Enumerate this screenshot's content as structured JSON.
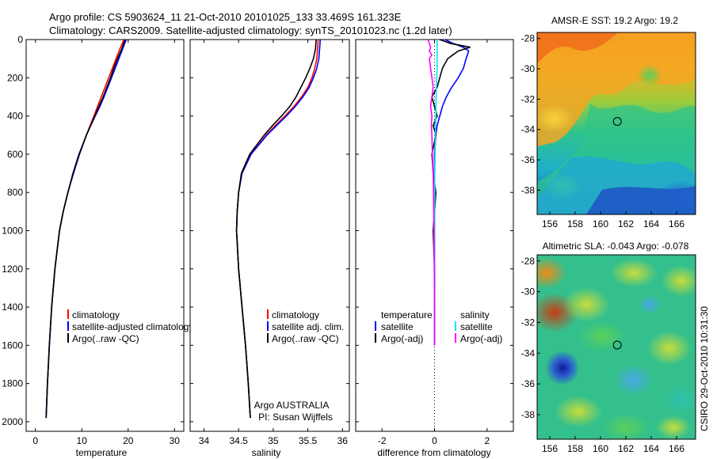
{
  "header": {
    "line1": "Argo profile: CS 5903624_11 21-Oct-2010 20101025_133 33.469S 161.323E",
    "line2": "Climatology: CARS2009. Satellite-adjusted climatology: synTS_20101023.nc (1.2d later)"
  },
  "credits": {
    "program": "Argo AUSTRALIA",
    "pi": "PI: Susan Wijffels",
    "stamp": "CSIRO 29-Oct-2010 10:31:30"
  },
  "chart_data": [
    {
      "type": "line",
      "name": "temperature-profile",
      "xlabel": "temperature",
      "ylabel": "",
      "xlim": [
        -2,
        32
      ],
      "ylim": [
        2050,
        0
      ],
      "xticks": [
        0,
        10,
        20,
        30
      ],
      "yticks": [
        0,
        200,
        400,
        600,
        800,
        1000,
        1200,
        1400,
        1600,
        1800,
        2000
      ],
      "depth": [
        0,
        50,
        100,
        150,
        200,
        250,
        300,
        350,
        400,
        450,
        500,
        600,
        700,
        800,
        900,
        1000,
        1200,
        1400,
        1600,
        1800,
        1980
      ],
      "series": [
        {
          "name": "climatology",
          "color": "#ff0000",
          "values": [
            19.1,
            18.2,
            17.4,
            16.6,
            15.8,
            15.0,
            14.2,
            13.4,
            12.6,
            11.8,
            11.0,
            9.5,
            8.2,
            7.0,
            6.0,
            5.2,
            4.2,
            3.5,
            3.0,
            2.6,
            2.3
          ]
        },
        {
          "name": "satellite-adjusted climatology",
          "color": "#0000ff",
          "values": [
            19.6,
            18.8,
            18.0,
            17.2,
            16.4,
            15.6,
            14.8,
            13.9,
            12.9,
            11.9,
            11.0,
            9.5,
            8.2,
            7.0,
            6.0,
            5.2,
            4.2,
            3.5,
            3.0,
            2.6,
            2.3
          ]
        },
        {
          "name": "Argo(..raw -QC)",
          "color": "#000000",
          "values": [
            19.3,
            18.6,
            17.7,
            16.9,
            16.2,
            15.4,
            14.6,
            13.7,
            12.8,
            11.9,
            11.0,
            9.4,
            8.1,
            7.0,
            6.0,
            5.2,
            4.2,
            3.5,
            3.0,
            2.6,
            2.3
          ]
        }
      ],
      "legend": {
        "position": "bottom-right",
        "labels": [
          "climatology",
          "satellite-adjusted climatology",
          "Argo(..raw -QC)"
        ]
      }
    },
    {
      "type": "line",
      "name": "salinity-profile",
      "xlabel": "salinity",
      "ylabel": "",
      "xlim": [
        33.8,
        36.1
      ],
      "ylim": [
        2050,
        0
      ],
      "xticks": [
        34,
        34.5,
        35,
        35.5,
        36
      ],
      "depth": [
        0,
        50,
        100,
        150,
        200,
        250,
        300,
        350,
        400,
        450,
        500,
        600,
        700,
        800,
        900,
        1000,
        1200,
        1400,
        1600,
        1800,
        1980
      ],
      "series": [
        {
          "name": "climatology",
          "color": "#ff0000",
          "values": [
            35.65,
            35.64,
            35.63,
            35.6,
            35.56,
            35.5,
            35.41,
            35.3,
            35.17,
            35.03,
            34.9,
            34.68,
            34.55,
            34.5,
            34.48,
            34.47,
            34.5,
            34.55,
            34.6,
            34.64,
            34.67
          ]
        },
        {
          "name": "satellite adj. clim.",
          "color": "#0000ff",
          "values": [
            35.68,
            35.67,
            35.66,
            35.63,
            35.58,
            35.52,
            35.43,
            35.32,
            35.19,
            35.05,
            34.91,
            34.68,
            34.55,
            34.5,
            34.48,
            34.47,
            34.5,
            34.55,
            34.6,
            34.64,
            34.67
          ]
        },
        {
          "name": "Argo(..raw -QC)",
          "color": "#000000",
          "values": [
            35.62,
            35.61,
            35.58,
            35.53,
            35.47,
            35.4,
            35.33,
            35.24,
            35.12,
            34.99,
            34.87,
            34.66,
            34.54,
            34.5,
            34.48,
            34.47,
            34.5,
            34.55,
            34.6,
            34.64,
            34.67
          ]
        }
      ],
      "legend": {
        "position": "bottom-right",
        "labels": [
          "climatology",
          "satellite adj. clim.",
          "Argo(..raw -QC)"
        ]
      }
    },
    {
      "type": "line",
      "name": "difference-profile",
      "xlabel": "difference from climatology",
      "ylabel": "",
      "xlim": [
        -3,
        3
      ],
      "ylim": [
        2050,
        0
      ],
      "xticks": [
        -2,
        0,
        2
      ],
      "zero_line": "dotted",
      "depth": [
        0,
        20,
        40,
        60,
        80,
        100,
        150,
        200,
        250,
        300,
        350,
        400,
        450,
        500,
        600,
        700,
        800,
        900,
        1000,
        1200,
        1400,
        1600
      ],
      "series": [
        {
          "name": "temperature satellite",
          "color": "#0000ff",
          "values": [
            0.4,
            0.7,
            1.1,
            1.3,
            1.25,
            1.2,
            1.1,
            0.9,
            0.65,
            0.45,
            0.3,
            0.2,
            0.1,
            0.05,
            0.0,
            0.0,
            0.0,
            0.0,
            0.0,
            0.0,
            0.0,
            0.0
          ]
        },
        {
          "name": "temperature Argo(-adj)",
          "color": "#000000",
          "values": [
            0.2,
            0.6,
            1.35,
            0.9,
            0.7,
            0.5,
            0.3,
            0.2,
            0.1,
            -0.1,
            0.0,
            0.1,
            -0.05,
            0.05,
            -0.1,
            -0.05,
            0.05,
            0.0,
            -0.05,
            0.0,
            0.0,
            0.0
          ]
        },
        {
          "name": "salinity satellite",
          "color": "#00e5ff",
          "values": [
            0.1,
            0.1,
            0.1,
            0.1,
            0.1,
            0.1,
            0.1,
            0.08,
            0.07,
            0.06,
            0.05,
            0.05,
            0.04,
            0.03,
            0.02,
            0.01,
            0.01,
            0.0,
            0.0,
            0.0,
            0.0,
            0.0
          ]
        },
        {
          "name": "salinity Argo(-adj)",
          "color": "#ff00ff",
          "values": [
            -0.25,
            -0.2,
            -0.15,
            -0.2,
            -0.1,
            -0.2,
            -0.15,
            -0.1,
            -0.05,
            -0.1,
            -0.15,
            -0.1,
            -0.12,
            -0.1,
            -0.08,
            -0.05,
            -0.04,
            -0.03,
            -0.02,
            -0.01,
            0.0,
            0.0
          ]
        }
      ],
      "legend": {
        "position": "bottom",
        "temperature_heading": "temperature",
        "salinity_heading": "salinity",
        "labels": [
          "satellite",
          "Argo(-adj)",
          "satellite",
          "Argo(-adj)"
        ]
      }
    },
    {
      "type": "heatmap",
      "name": "sst-map",
      "title": "AMSR-E SST: 19.2 Argo: 19.2",
      "xlim": [
        155,
        167.5
      ],
      "ylim": [
        -39.6,
        -27.6
      ],
      "xticks": [
        156,
        158,
        160,
        162,
        164,
        166
      ],
      "yticks": [
        -28,
        -30,
        -32,
        -34,
        -36,
        -38
      ],
      "marker": {
        "lon": 161.323,
        "lat": -33.469
      }
    },
    {
      "type": "heatmap",
      "name": "sla-map",
      "title": "Altimetric SLA: -0.043 Argo: -0.078",
      "xlim": [
        155,
        167.5
      ],
      "ylim": [
        -39.6,
        -27.6
      ],
      "xticks": [
        156,
        158,
        160,
        162,
        164,
        166
      ],
      "yticks": [
        -28,
        -30,
        -32,
        -34,
        -36,
        -38
      ],
      "marker": {
        "lon": 161.323,
        "lat": -33.469
      }
    }
  ]
}
